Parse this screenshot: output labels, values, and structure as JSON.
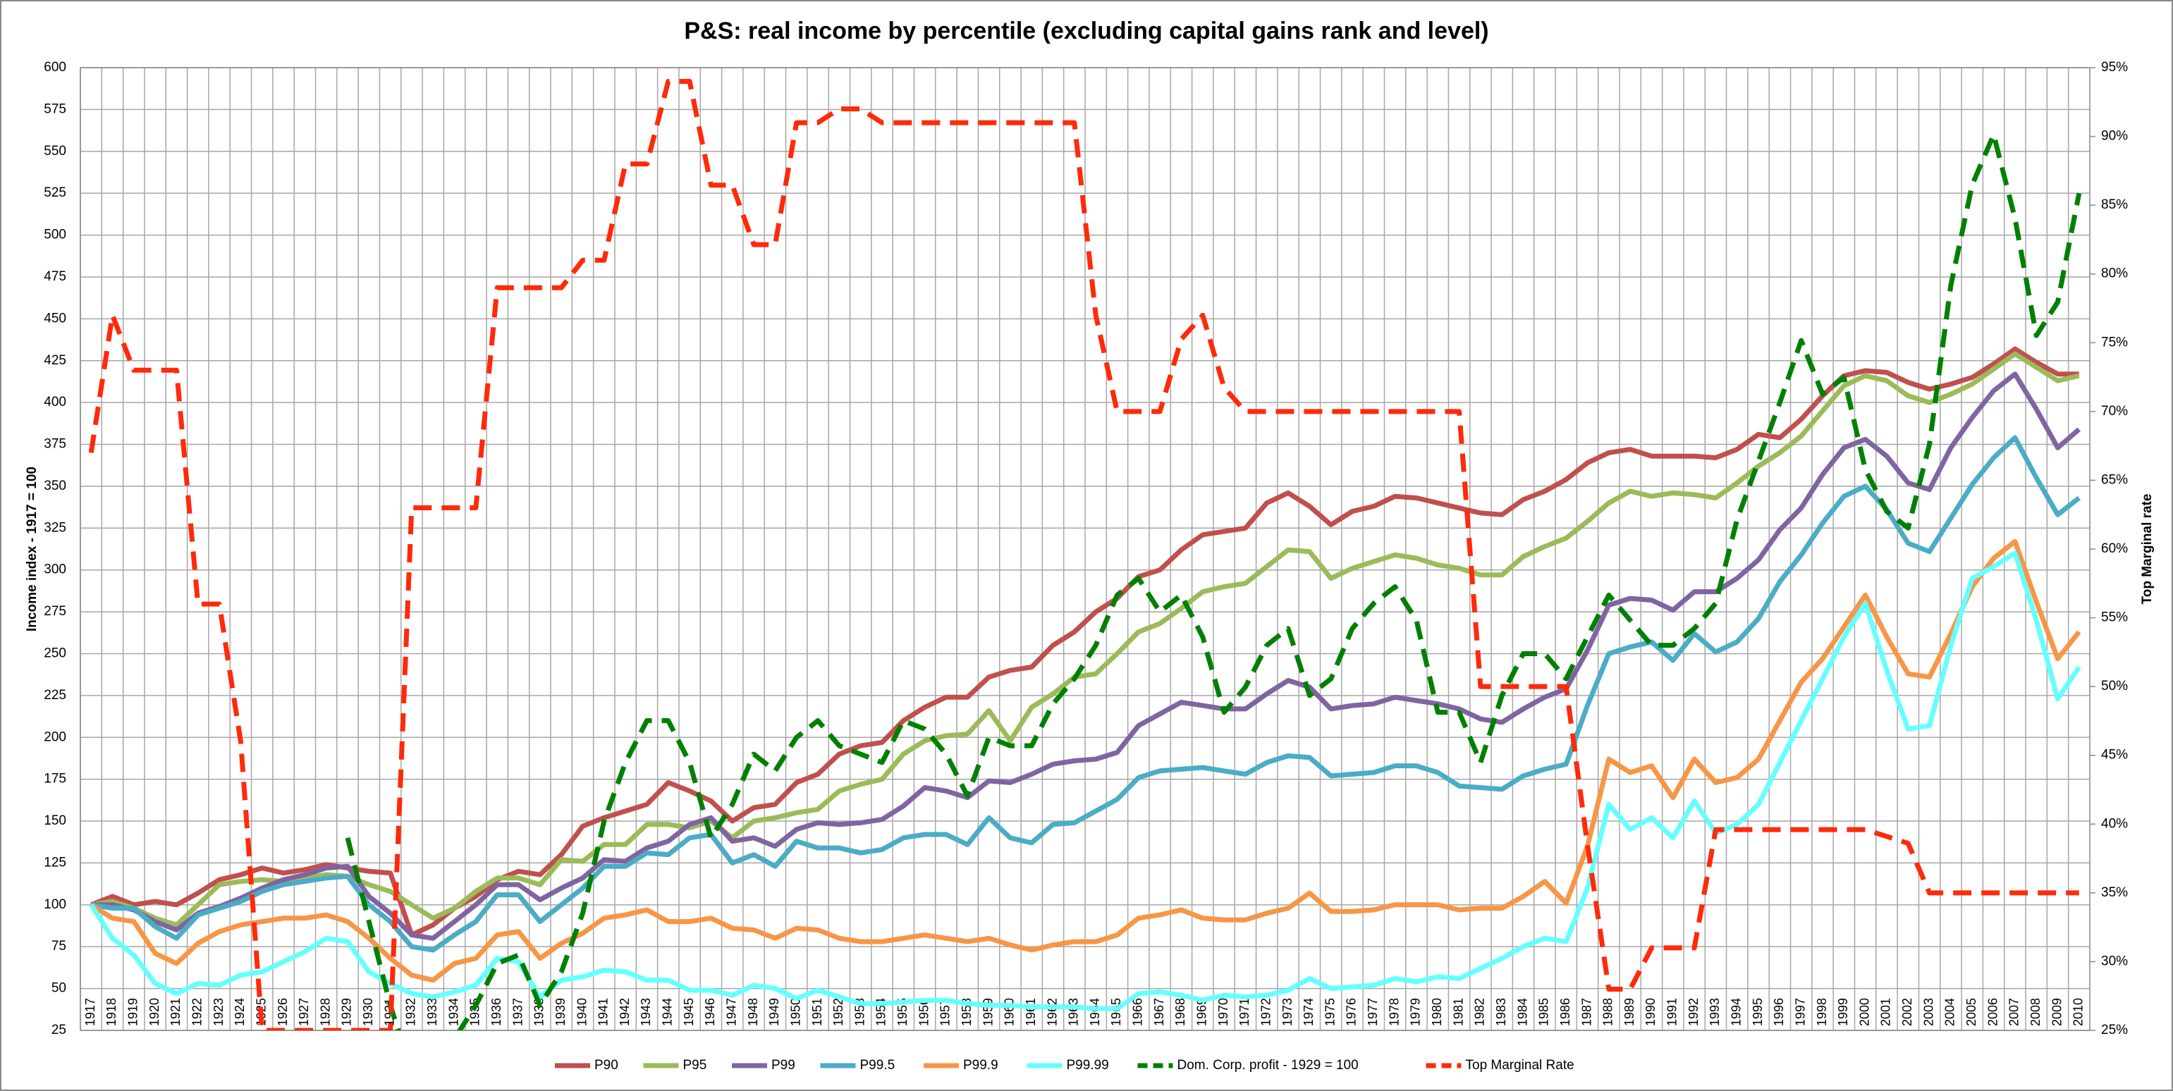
{
  "chart_data": {
    "type": "line",
    "title": "P&S: real income by percentile (excluding capital gains rank and level)",
    "y_label": "Income index - 1917 = 100",
    "y2_label": "Top Marginal rate",
    "categories": [
      "1917",
      "1918",
      "1919",
      "1920",
      "1921",
      "1922",
      "1923",
      "1924",
      "1925",
      "1926",
      "1927",
      "1928",
      "1929",
      "1930",
      "1931",
      "1932",
      "1933",
      "1934",
      "1935",
      "1936",
      "1937",
      "1938",
      "1939",
      "1940",
      "1941",
      "1942",
      "1943",
      "1944",
      "1945",
      "1946",
      "1947",
      "1948",
      "1949",
      "1950",
      "1951",
      "1952",
      "1953",
      "1954",
      "1955",
      "1956",
      "1957",
      "1958",
      "1959",
      "1960",
      "1961",
      "1962",
      "1963",
      "1964",
      "1965",
      "1966",
      "1967",
      "1968",
      "1969",
      "1970",
      "1971",
      "1972",
      "1973",
      "1974",
      "1975",
      "1976",
      "1977",
      "1978",
      "1979",
      "1980",
      "1981",
      "1982",
      "1983",
      "1984",
      "1985",
      "1986",
      "1987",
      "1988",
      "1989",
      "1990",
      "1991",
      "1992",
      "1993",
      "1994",
      "1995",
      "1996",
      "1997",
      "1998",
      "1999",
      "2000",
      "2001",
      "2002",
      "2003",
      "2004",
      "2005",
      "2006",
      "2007",
      "2008",
      "2009",
      "2010"
    ],
    "ylim": [
      25,
      600
    ],
    "yticks": [
      25,
      50,
      75,
      100,
      125,
      150,
      175,
      200,
      225,
      250,
      275,
      300,
      325,
      350,
      375,
      400,
      425,
      450,
      475,
      500,
      525,
      550,
      575,
      600
    ],
    "y2lim": [
      25,
      95
    ],
    "y2ticks": [
      {
        "value": 25,
        "label": "25%"
      },
      {
        "value": 30,
        "label": "30%"
      },
      {
        "value": 35,
        "label": "35%"
      },
      {
        "value": 40,
        "label": "40%"
      },
      {
        "value": 45,
        "label": "45%"
      },
      {
        "value": 50,
        "label": "50%"
      },
      {
        "value": 55,
        "label": "55%"
      },
      {
        "value": 60,
        "label": "60%"
      },
      {
        "value": 65,
        "label": "65%"
      },
      {
        "value": 70,
        "label": "70%"
      },
      {
        "value": 75,
        "label": "75%"
      },
      {
        "value": 80,
        "label": "80%"
      },
      {
        "value": 85,
        "label": "85%"
      },
      {
        "value": 90,
        "label": "90%"
      },
      {
        "value": 95,
        "label": "95%"
      }
    ],
    "grid": true,
    "legend": "bottom",
    "series": [
      {
        "name": "P90",
        "color": "#c0504d",
        "values": [
          100,
          105,
          100,
          102,
          100,
          107,
          115,
          118,
          122,
          119,
          121,
          124,
          122,
          120,
          119,
          82,
          88,
          98,
          105,
          115,
          120,
          118,
          130,
          147,
          152,
          156,
          160,
          173,
          168,
          162,
          150,
          158,
          160,
          173,
          178,
          190,
          195,
          197,
          210,
          218,
          224,
          224,
          236,
          240,
          242,
          255,
          263,
          275,
          283,
          296,
          300,
          312,
          321,
          323,
          325,
          340,
          346,
          338,
          327,
          335,
          338,
          344,
          343,
          340,
          337,
          334,
          333,
          342,
          347,
          354,
          364,
          370,
          372,
          368,
          368,
          368,
          367,
          372,
          381,
          379,
          390,
          404,
          416,
          419,
          418,
          412,
          408,
          411,
          415,
          423,
          432,
          424,
          417,
          417
        ]
      },
      {
        "name": "P95",
        "color": "#9bbb59",
        "values": [
          100,
          102,
          98,
          92,
          88,
          100,
          112,
          114,
          115,
          114,
          116,
          118,
          117,
          112,
          108,
          100,
          92,
          98,
          108,
          116,
          116,
          112,
          127,
          126,
          136,
          136,
          148,
          148,
          146,
          150,
          140,
          150,
          152,
          155,
          157,
          168,
          172,
          175,
          190,
          198,
          201,
          202,
          216,
          198,
          218,
          226,
          236,
          238,
          250,
          263,
          268,
          277,
          287,
          290,
          292,
          302,
          312,
          311,
          295,
          301,
          305,
          309,
          307,
          303,
          301,
          297,
          297,
          308,
          314,
          319,
          329,
          340,
          347,
          344,
          346,
          345,
          343,
          352,
          362,
          370,
          380,
          395,
          410,
          416,
          413,
          404,
          400,
          405,
          411,
          420,
          429,
          421,
          413,
          416
        ]
      },
      {
        "name": "P99",
        "color": "#8064a2",
        "values": [
          100,
          100,
          97,
          90,
          85,
          95,
          99,
          104,
          110,
          115,
          118,
          122,
          123,
          105,
          95,
          82,
          80,
          90,
          100,
          112,
          112,
          103,
          110,
          116,
          127,
          126,
          134,
          138,
          148,
          152,
          138,
          140,
          135,
          145,
          149,
          148,
          149,
          151,
          159,
          170,
          168,
          164,
          174,
          173,
          178,
          184,
          186,
          187,
          191,
          207,
          214,
          221,
          219,
          217,
          217,
          226,
          234,
          230,
          217,
          219,
          220,
          224,
          222,
          220,
          217,
          211,
          209,
          217,
          224,
          229,
          252,
          279,
          283,
          282,
          276,
          287,
          287,
          295,
          306,
          324,
          337,
          357,
          373,
          378,
          368,
          352,
          348,
          373,
          391,
          407,
          417,
          396,
          373,
          384
        ]
      },
      {
        "name": "P99.5",
        "color": "#4bacc6",
        "values": [
          100,
          98,
          98,
          87,
          80,
          94,
          98,
          102,
          108,
          112,
          114,
          116,
          117,
          100,
          90,
          75,
          73,
          82,
          90,
          106,
          106,
          90,
          100,
          110,
          123,
          123,
          131,
          130,
          140,
          142,
          125,
          130,
          123,
          138,
          134,
          134,
          131,
          133,
          140,
          142,
          142,
          136,
          152,
          140,
          137,
          148,
          149,
          156,
          163,
          176,
          180,
          181,
          182,
          180,
          178,
          185,
          189,
          188,
          177,
          178,
          179,
          183,
          183,
          179,
          171,
          170,
          169,
          177,
          181,
          184,
          219,
          250,
          254,
          257,
          246,
          262,
          251,
          257,
          271,
          293,
          309,
          328,
          344,
          350,
          336,
          316,
          311,
          331,
          351,
          367,
          379,
          355,
          333,
          343
        ]
      },
      {
        "name": "P99.9",
        "color": "#f79646",
        "values": [
          100,
          92,
          90,
          71,
          65,
          77,
          84,
          88,
          90,
          92,
          92,
          94,
          90,
          80,
          68,
          58,
          55,
          65,
          68,
          82,
          84,
          68,
          77,
          83,
          92,
          94,
          97,
          90,
          90,
          92,
          86,
          85,
          80,
          86,
          85,
          80,
          78,
          78,
          80,
          82,
          80,
          78,
          80,
          76,
          73,
          76,
          78,
          78,
          82,
          92,
          94,
          97,
          92,
          91,
          91,
          95,
          98,
          107,
          96,
          96,
          97,
          100,
          100,
          100,
          97,
          98,
          98,
          105,
          114,
          101,
          135,
          187,
          179,
          183,
          164,
          187,
          173,
          176,
          187,
          210,
          233,
          247,
          266,
          285,
          260,
          238,
          236,
          262,
          290,
          307,
          317,
          281,
          247,
          263
        ]
      },
      {
        "name": "P99.99",
        "color": "#66ffff",
        "values": [
          100,
          80,
          70,
          53,
          47,
          53,
          52,
          58,
          60,
          66,
          72,
          80,
          78,
          60,
          53,
          47,
          45,
          48,
          52,
          68,
          66,
          45,
          55,
          57,
          61,
          60,
          55,
          55,
          49,
          49,
          46,
          52,
          50,
          44,
          49,
          45,
          41,
          41,
          42,
          43,
          43,
          41,
          40,
          40,
          39,
          39,
          39,
          38,
          38,
          47,
          48,
          46,
          43,
          46,
          45,
          46,
          49,
          56,
          50,
          51,
          52,
          56,
          54,
          57,
          56,
          62,
          68,
          75,
          80,
          78,
          110,
          160,
          145,
          152,
          140,
          162,
          143,
          148,
          160,
          185,
          210,
          235,
          260,
          280,
          240,
          205,
          207,
          255,
          295,
          302,
          310,
          270,
          223,
          242
        ]
      },
      {
        "name": "Dom. Corp. profit - 1929 = 100",
        "color": "#008000",
        "dashed": true,
        "values": [
          null,
          null,
          null,
          null,
          null,
          null,
          null,
          null,
          null,
          null,
          null,
          null,
          140,
          90,
          40,
          0,
          0,
          20,
          40,
          65,
          70,
          40,
          60,
          95,
          150,
          185,
          210,
          210,
          185,
          140,
          160,
          190,
          180,
          200,
          210,
          195,
          190,
          185,
          210,
          205,
          190,
          165,
          200,
          195,
          195,
          220,
          235,
          255,
          285,
          295,
          275,
          285,
          260,
          215,
          230,
          255,
          265,
          225,
          235,
          265,
          280,
          290,
          270,
          215,
          215,
          185,
          225,
          250,
          250,
          235,
          260,
          285,
          270,
          255,
          255,
          265,
          280,
          330,
          365,
          400,
          437,
          405,
          415,
          360,
          335,
          325,
          375,
          470,
          530,
          560,
          510,
          440,
          460,
          525
        ]
      },
      {
        "name": "Top Marginal Rate",
        "color": "#ff2a0a",
        "dashed": true,
        "axis": "y2",
        "values": [
          67,
          77,
          73,
          73,
          73,
          56,
          56,
          46,
          25,
          25,
          25,
          25,
          25,
          25,
          25,
          63,
          63,
          63,
          63,
          79,
          79,
          79,
          79,
          81,
          81,
          88,
          88,
          94,
          94,
          86.45,
          86.45,
          82.13,
          82.13,
          91,
          91,
          92,
          92,
          91,
          91,
          91,
          91,
          91,
          91,
          91,
          91,
          91,
          91,
          77,
          70,
          70,
          70,
          75.25,
          77,
          71.75,
          70,
          70,
          70,
          70,
          70,
          70,
          70,
          70,
          70,
          70,
          70,
          50,
          50,
          50,
          50,
          50,
          38.5,
          28,
          28,
          31,
          31,
          31,
          39.6,
          39.6,
          39.6,
          39.6,
          39.6,
          39.6,
          39.6,
          39.6,
          39.1,
          38.6,
          35,
          35,
          35,
          35,
          35,
          35,
          35,
          35
        ]
      }
    ]
  }
}
